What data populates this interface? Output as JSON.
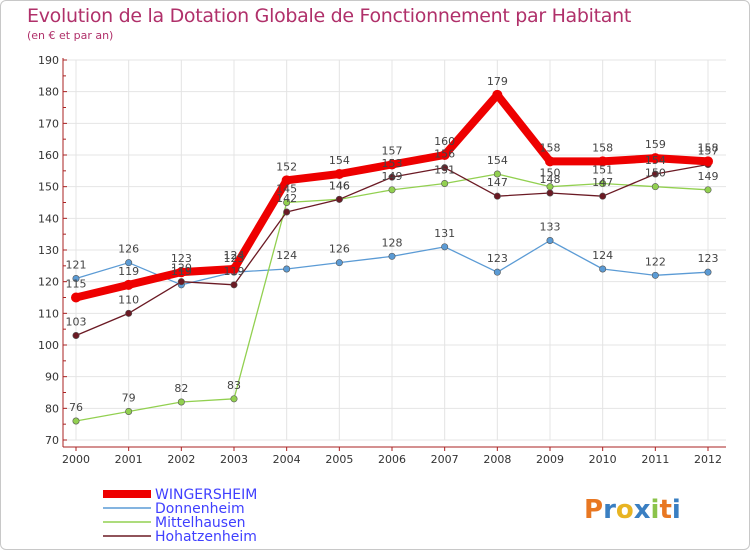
{
  "header": {
    "title": "Evolution de la Dotation Globale de Fonctionnement par Habitant",
    "subtitle": "(en € et par an)"
  },
  "brand": {
    "text": "Proxiti",
    "letters": [
      "P",
      "r",
      "o",
      "x",
      "i",
      "t",
      "i"
    ],
    "colors": [
      "#e87722",
      "#3a7fc2",
      "#e8b422",
      "#3a7fc2",
      "#8bc34a",
      "#e87722",
      "#3a7fc2"
    ]
  },
  "chart_data": {
    "type": "line",
    "title": "Evolution de la Dotation Globale de Fonctionnement par Habitant",
    "subtitle": "(en € et par an)",
    "xlabel": "",
    "ylabel": "",
    "ylim": [
      70,
      190
    ],
    "yticks": [
      70,
      80,
      90,
      100,
      110,
      120,
      130,
      140,
      150,
      160,
      170,
      180,
      190
    ],
    "x": [
      "2000",
      "2001",
      "2002",
      "2003",
      "2004",
      "2005",
      "2006",
      "2007",
      "2008",
      "2009",
      "2010",
      "2011",
      "2012"
    ],
    "grid": true,
    "legend_position": "bottom-left",
    "series": [
      {
        "name": "Donnenheim",
        "color": "#5b9bd5",
        "values": [
          121,
          126,
          119,
          123,
          124,
          126,
          128,
          131,
          123,
          133,
          124,
          122,
          123
        ]
      },
      {
        "name": "Mittelhausen",
        "color": "#92d050",
        "values": [
          76,
          79,
          82,
          83,
          145,
          146,
          149,
          151,
          154,
          150,
          151,
          150,
          149
        ]
      },
      {
        "name": "Hohatzenheim",
        "color": "#6b1a24",
        "values": [
          103,
          110,
          120,
          119,
          142,
          146,
          153,
          156,
          147,
          148,
          147,
          154,
          157
        ]
      },
      {
        "name": "WINGERSHEIM",
        "color": "#ee0000",
        "values": [
          115,
          119,
          123,
          124,
          152,
          154,
          157,
          160,
          179,
          158,
          158,
          159,
          158
        ]
      }
    ],
    "legend": [
      "WINGERSHEIM",
      "Donnenheim",
      "Mittelhausen",
      "Hohatzenheim"
    ],
    "legend_colors": [
      "#ee0000",
      "#5b9bd5",
      "#92d050",
      "#6b1a24"
    ],
    "legend_text_color": "#3f3fff"
  }
}
